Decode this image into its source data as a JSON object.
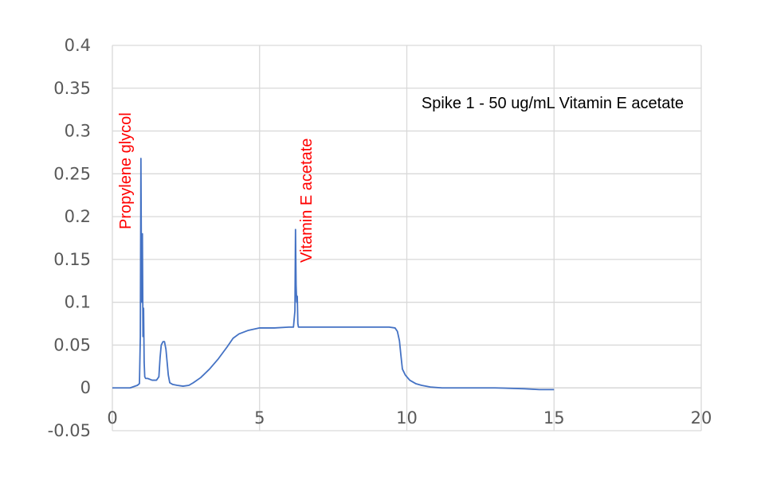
{
  "chart_data": {
    "type": "line",
    "xlim": [
      0,
      20
    ],
    "ylim": [
      -0.05,
      0.4
    ],
    "x_ticks": [
      "0",
      "5",
      "10",
      "15",
      "20"
    ],
    "y_ticks": [
      "0.4",
      "0.35",
      "0.3",
      "0.25",
      "0.2",
      "0.15",
      "0.1",
      "0.05",
      "0",
      "-0.05"
    ],
    "x_tick_values": [
      0,
      5,
      10,
      15,
      20
    ],
    "y_tick_values": [
      0.4,
      0.35,
      0.3,
      0.25,
      0.2,
      0.15,
      0.1,
      0.05,
      0,
      -0.05
    ],
    "grid": true,
    "series": [
      {
        "color": "#4472c4",
        "x": [
          0,
          0.6,
          0.85,
          0.92,
          0.95,
          0.97,
          0.99,
          1.0,
          1.02,
          1.04,
          1.06,
          1.08,
          1.1,
          1.13,
          1.2,
          1.35,
          1.5,
          1.58,
          1.62,
          1.66,
          1.72,
          1.77,
          1.82,
          1.86,
          1.9,
          1.95,
          2.05,
          2.2,
          2.4,
          2.6,
          2.75,
          3.0,
          3.3,
          3.6,
          3.9,
          4.1,
          4.3,
          4.6,
          5.0,
          5.5,
          6.0,
          6.15,
          6.2,
          6.22,
          6.24,
          6.26,
          6.28,
          6.3,
          6.32,
          6.35,
          6.4,
          6.5,
          7.0,
          8.0,
          9.0,
          9.4,
          9.6,
          9.68,
          9.75,
          9.8,
          9.85,
          9.95,
          10.1,
          10.3,
          10.5,
          10.8,
          11.2,
          12.0,
          13.0,
          14.0,
          14.5,
          15.0
        ],
        "y": [
          0,
          0,
          0.003,
          0.005,
          0.06,
          0.268,
          0.12,
          0.1,
          0.18,
          0.06,
          0.093,
          0.03,
          0.013,
          0.011,
          0.011,
          0.009,
          0.009,
          0.013,
          0.035,
          0.05,
          0.054,
          0.054,
          0.045,
          0.03,
          0.015,
          0.006,
          0.004,
          0.003,
          0.002,
          0.003,
          0.006,
          0.012,
          0.022,
          0.034,
          0.048,
          0.058,
          0.063,
          0.067,
          0.07,
          0.07,
          0.071,
          0.071,
          0.09,
          0.185,
          0.12,
          0.1,
          0.107,
          0.075,
          0.071,
          0.071,
          0.071,
          0.071,
          0.071,
          0.071,
          0.071,
          0.071,
          0.07,
          0.066,
          0.055,
          0.038,
          0.022,
          0.015,
          0.009,
          0.005,
          0.003,
          0.001,
          0,
          0,
          0,
          -0.001,
          -0.002,
          -0.002
        ]
      }
    ],
    "legend": {
      "text": "Spike 1 - 50 ug/mL Vitamin E acetate",
      "placement": "top-right"
    },
    "annotations": [
      {
        "text": "Propylene glycol",
        "x": 0.95,
        "color": "#ff0000",
        "rotation": "vertical"
      },
      {
        "text": "Vitamin E acetate",
        "x": 6.6,
        "color": "#ff0000",
        "rotation": "vertical"
      }
    ],
    "title": "",
    "xlabel": "",
    "ylabel": ""
  }
}
